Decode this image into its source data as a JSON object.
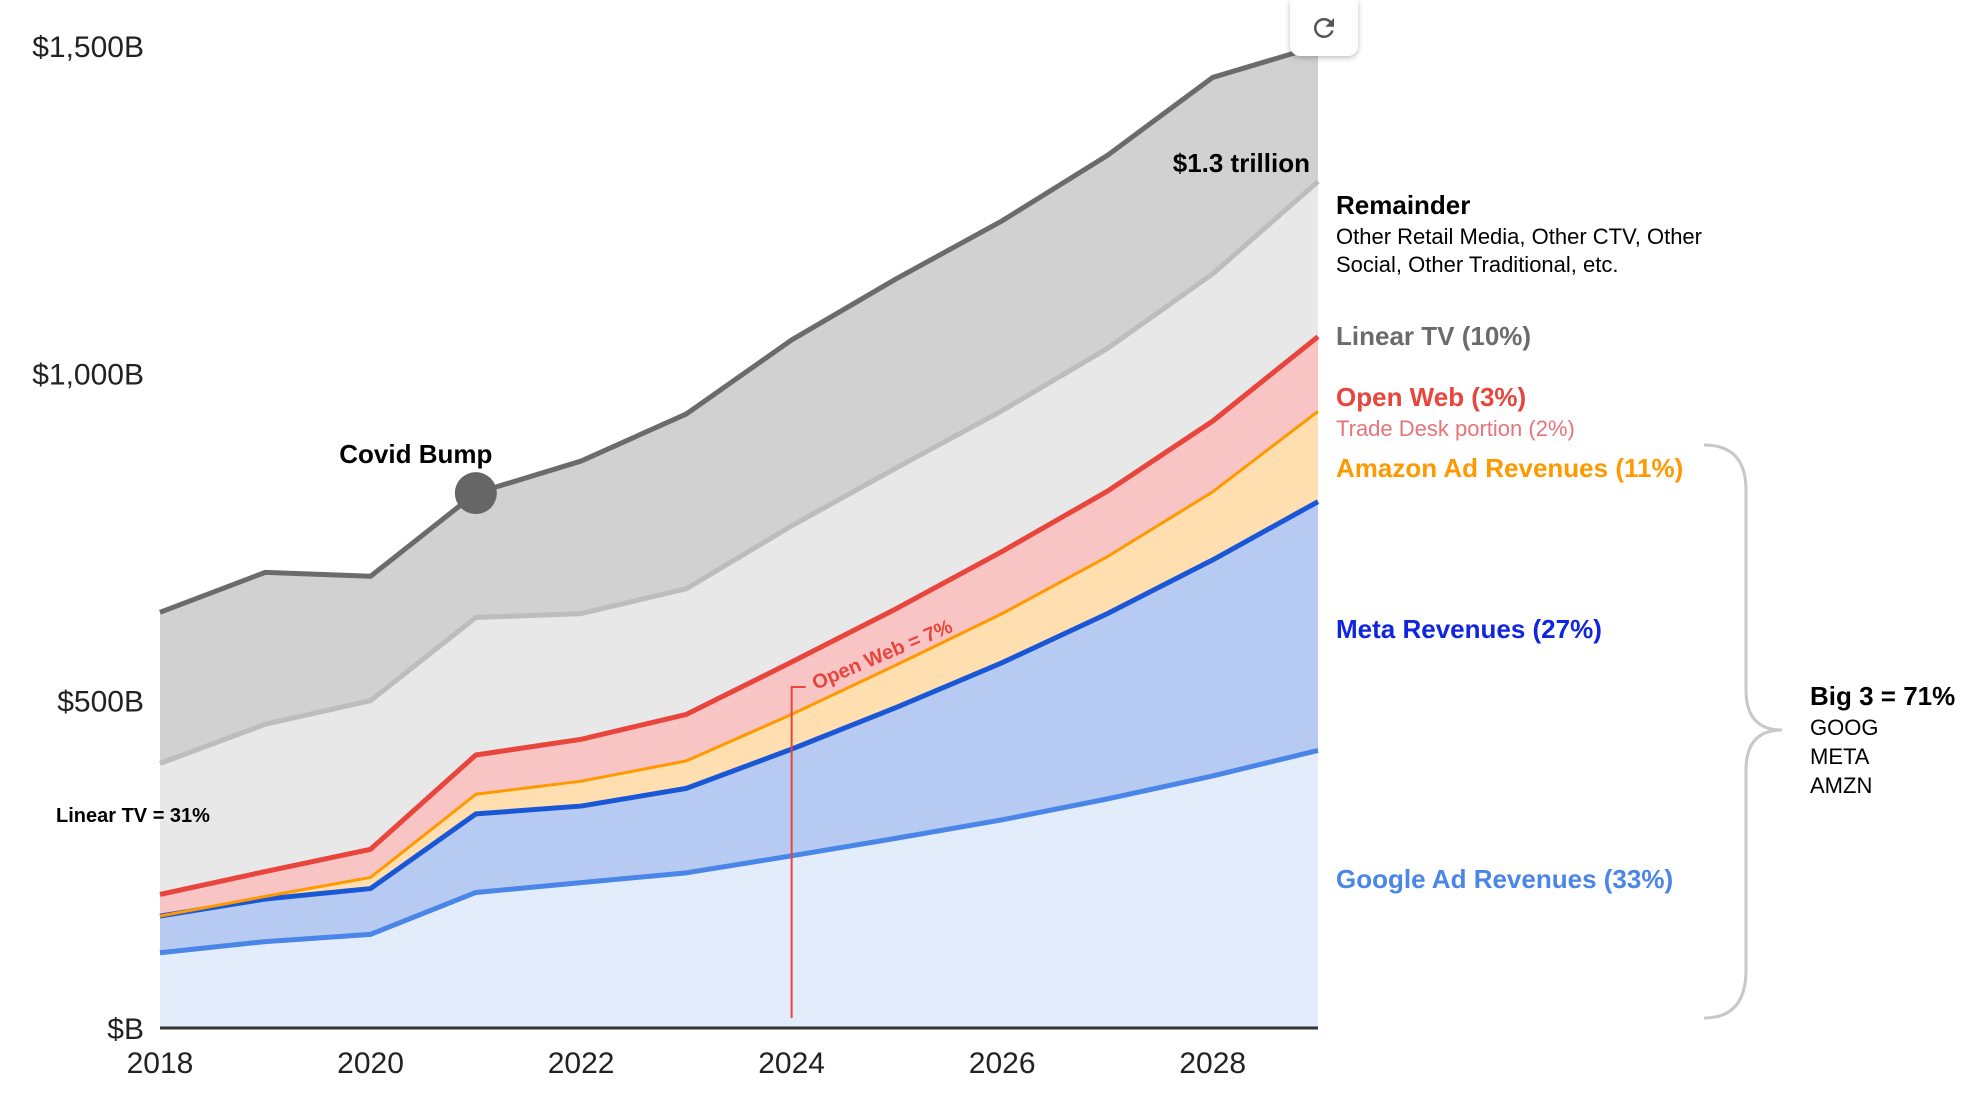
{
  "chart_data": {
    "type": "area",
    "stacked": true,
    "x": [
      2018,
      2019,
      2020,
      2021,
      2022,
      2023,
      2024,
      2025,
      2026,
      2027,
      2028,
      2029
    ],
    "x_tick_labels": [
      "2018",
      "2020",
      "2022",
      "2024",
      "2026",
      "2028"
    ],
    "y_tick_labels": [
      "$1,500B",
      "$1,000B",
      "$500B",
      "$B"
    ],
    "ylim": [
      0,
      1500
    ],
    "y_unit": "$B",
    "series": [
      {
        "key": "google",
        "name": "Google Ad Revenues (33%)",
        "color": "#4a86e8",
        "fill": "#e3ecfb",
        "values": [
          115,
          132,
          143,
          207,
          222,
          237,
          263,
          290,
          318,
          350,
          385,
          424
        ]
      },
      {
        "key": "meta",
        "name": "Meta Revenues (27%)",
        "color": "#1a57d6",
        "fill": "#b7cbf2",
        "values": [
          56,
          65,
          70,
          120,
          117,
          129,
          163,
          200,
          240,
          283,
          330,
          380
        ]
      },
      {
        "key": "amazon",
        "name": "Amazon Ad Revenues (11%)",
        "color": "#ff9900",
        "fill": "#ffdfb0",
        "values": [
          0,
          4,
          17,
          30,
          38,
          42,
          53,
          65,
          75,
          87,
          104,
          138
        ]
      },
      {
        "key": "openweb",
        "name": "Open Web (3%)",
        "color": "#e8453c",
        "fill": "#f9c4c4",
        "values": [
          33,
          38,
          43,
          60,
          64,
          71,
          80,
          86,
          95,
          100,
          108,
          114
        ]
      },
      {
        "key": "lineartv",
        "name": "Linear TV (10%)",
        "color": "#bdbdbd",
        "fill": "#e8e8e8",
        "values": [
          200,
          225,
          227,
          210,
          192,
          192,
          208,
          215,
          215,
          218,
          225,
          237
        ]
      },
      {
        "key": "remainder",
        "name": "Remainder",
        "color": "#6b6b6b",
        "fill": "#d1d1d1",
        "values": [
          231,
          232,
          190,
          190,
          233,
          267,
          284,
          289,
          290,
          295,
          300,
          207
        ]
      }
    ],
    "totals_top": [
      635,
      696,
      690,
      817,
      866,
      938,
      1051,
      1145,
      1233,
      1333,
      1452,
      1500
    ],
    "annotations": {
      "covid_bump": "Covid Bump",
      "total_label": "$1.3 trillion",
      "linear_tv_2018": "Linear TV = 31%",
      "open_web_marker": "Open Web = 7%",
      "open_web_marker_year": 2024
    },
    "legend": {
      "remainder_title": "Remainder",
      "remainder_line1": "Other Retail Media, Other CTV, Other",
      "remainder_line2": "Social, Other Traditional, etc.",
      "linear_tv": "Linear TV (10%)",
      "open_web": "Open Web (3%)",
      "trade_desk": "Trade Desk portion (2%)",
      "amazon": "Amazon Ad Revenues (11%)",
      "meta": "Meta Revenues (27%)",
      "google": "Google Ad Revenues (33%)",
      "big3_title": "Big 3 = 71%",
      "big3_items": [
        "GOOG",
        "META",
        "AMZN"
      ]
    },
    "colors": {
      "remainder_text": "#000000",
      "linear_tv_text": "#6b6b6b",
      "open_web_text": "#e8453c",
      "trade_desk_text": "#e8737a",
      "amazon_text": "#ff9900",
      "meta_text": "#1025e0",
      "google_text": "#4a86e8"
    }
  },
  "toolbar": {
    "reload_icon": "refresh-icon"
  }
}
